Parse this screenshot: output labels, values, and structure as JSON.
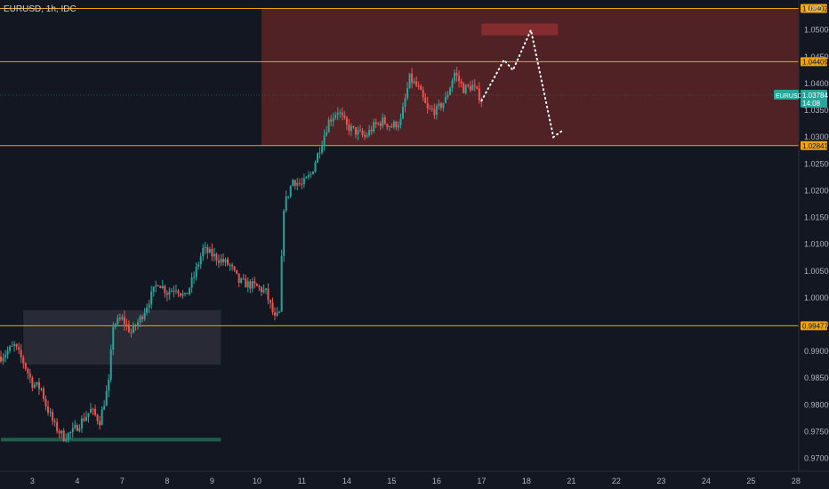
{
  "symbol_header": {
    "text": "EURUSD, 1h, IDC"
  },
  "axis": {
    "currency": "USD"
  },
  "colors": {
    "background": "#131722",
    "bull": "#26a69a",
    "bear": "#ef5350",
    "hline": "#f0a30a",
    "zone_fill": "#5c2427",
    "gray_box": "#2b2e38",
    "target_box": "#8b2e33",
    "support_line": "#1f5e4a",
    "price_badge": "#26a69a"
  },
  "price_label": {
    "symbol": "EURUSD",
    "price": "1.03784",
    "countdown": "14:08"
  },
  "chart_data": {
    "type": "candlestick",
    "title": "EURUSD, 1h, IDC",
    "y_unit": "USD",
    "ylim": [
      0.9676,
      1.0556
    ],
    "y_ticks": [
      "1.05000",
      "1.04500",
      "1.04000",
      "1.03500",
      "1.03000",
      "1.02500",
      "1.02000",
      "1.01500",
      "1.01000",
      "1.00500",
      "1.00000",
      "0.99500",
      "0.99000",
      "0.98500",
      "0.98000",
      "0.97500",
      "0.97000"
    ],
    "x_ticks": [
      {
        "label": "3",
        "slot": 7
      },
      {
        "label": "4",
        "slot": 17
      },
      {
        "label": "7",
        "slot": 27
      },
      {
        "label": "8",
        "slot": 37
      },
      {
        "label": "9",
        "slot": 47
      },
      {
        "label": "10",
        "slot": 57
      },
      {
        "label": "11",
        "slot": 67
      },
      {
        "label": "14",
        "slot": 77
      },
      {
        "label": "15",
        "slot": 87
      },
      {
        "label": "16",
        "slot": 97
      },
      {
        "label": "17",
        "slot": 107
      },
      {
        "label": "18",
        "slot": 117
      },
      {
        "label": "21",
        "slot": 127
      },
      {
        "label": "22",
        "slot": 137
      },
      {
        "label": "23",
        "slot": 147
      },
      {
        "label": "24",
        "slot": 157
      },
      {
        "label": "25",
        "slot": 167
      },
      {
        "label": "28",
        "slot": 177
      }
    ],
    "candle_anchors": [
      [
        0,
        0.989
      ],
      [
        3,
        0.991
      ],
      [
        5,
        0.988
      ],
      [
        7,
        0.984
      ],
      [
        9,
        0.983
      ],
      [
        10,
        0.98
      ],
      [
        12,
        0.976
      ],
      [
        14,
        0.974
      ],
      [
        16,
        0.975
      ],
      [
        18,
        0.977
      ],
      [
        20,
        0.979
      ],
      [
        22,
        0.977
      ],
      [
        24,
        0.984
      ],
      [
        25,
        0.995
      ],
      [
        27,
        0.996
      ],
      [
        29,
        0.9935
      ],
      [
        31,
        0.996
      ],
      [
        33,
        0.9995
      ],
      [
        35,
        1.003
      ],
      [
        37,
        1.001
      ],
      [
        39,
        1.002
      ],
      [
        41,
        1.0
      ],
      [
        43,
        1.004
      ],
      [
        45,
        1.009
      ],
      [
        47,
        1.008
      ],
      [
        49,
        1.007
      ],
      [
        51,
        1.006
      ],
      [
        53,
        1.003
      ],
      [
        55,
        1.0025
      ],
      [
        57,
        1.002
      ],
      [
        59,
        1.001
      ],
      [
        61,
        0.996
      ],
      [
        62,
        0.997
      ],
      [
        63,
        1.017
      ],
      [
        65,
        1.022
      ],
      [
        67,
        1.021
      ],
      [
        69,
        1.023
      ],
      [
        71,
        1.028
      ],
      [
        73,
        1.033
      ],
      [
        75,
        1.035
      ],
      [
        77,
        1.032
      ],
      [
        79,
        1.031
      ],
      [
        81,
        1.03
      ],
      [
        83,
        1.032
      ],
      [
        85,
        1.033
      ],
      [
        87,
        1.032
      ],
      [
        89,
        1.033
      ],
      [
        91,
        1.041
      ],
      [
        93,
        1.039
      ],
      [
        95,
        1.035
      ],
      [
        97,
        1.035
      ],
      [
        99,
        1.037
      ],
      [
        101,
        1.042
      ],
      [
        103,
        1.039
      ],
      [
        105,
        1.0395
      ],
      [
        107,
        1.037
      ]
    ],
    "projection": [
      [
        107,
        1.0368
      ],
      [
        112,
        1.0444
      ],
      [
        114,
        1.0425
      ],
      [
        118,
        1.05
      ],
      [
        123,
        1.03
      ],
      [
        125,
        1.0312
      ]
    ],
    "levels": [
      {
        "price": 1.05402,
        "label": "1.05402"
      },
      {
        "price": 1.04409,
        "label": "1.04409"
      },
      {
        "price": 1.02841,
        "label": "1.02841"
      },
      {
        "price": 0.99477,
        "label": "0.99477"
      }
    ],
    "current_price": 1.03784,
    "zones": [
      {
        "kind": "resistance-zone",
        "from_slot": 58,
        "to_slot": 178,
        "top": 1.05402,
        "bottom": 1.02841
      },
      {
        "kind": "demand-zone",
        "from_slot": 5,
        "to_slot": 49,
        "top": 0.9977,
        "bottom": 0.9875
      },
      {
        "kind": "target-zone",
        "from_slot": 107,
        "to_slot": 124,
        "top": 1.0512,
        "bottom": 1.049
      }
    ],
    "support_line": {
      "price": 0.9735,
      "from_slot": 0,
      "to_slot": 49
    },
    "grid": false,
    "legend": "none"
  }
}
